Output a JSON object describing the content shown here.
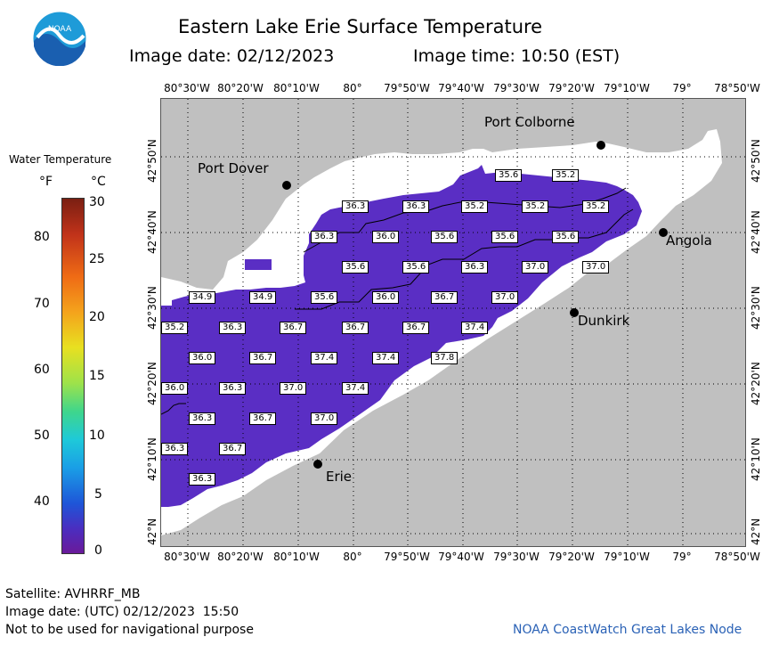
{
  "header": {
    "title": "Eastern Lake Erie Surface Temperature",
    "image_date": "Image date: 02/12/2023",
    "image_time": "Image time: 10:50 (EST)"
  },
  "logo": {
    "text": "NOAA"
  },
  "legend": {
    "title": "Water Temperature",
    "unit_f": "°F",
    "unit_c": "°C",
    "ticks_f": [
      "80",
      "70",
      "60",
      "50",
      "40"
    ],
    "ticks_c": [
      "30",
      "25",
      "20",
      "15",
      "10",
      "5",
      "0"
    ]
  },
  "axes": {
    "lon_labels": [
      "80°30'W",
      "80°20'W",
      "80°10'W",
      "80°",
      "79°50'W",
      "79°40'W",
      "79°30'W",
      "79°20'W",
      "79°10'W",
      "79°",
      "78°50'W"
    ],
    "lat_labels": [
      "42°50'N",
      "42°40'N",
      "42°30'N",
      "42°20'N",
      "42°10'N",
      "42°N"
    ]
  },
  "cities": {
    "port_colborne": "Port Colborne",
    "port_dover": "Port Dover",
    "angola": "Angola",
    "dunkirk": "Dunkirk",
    "erie": "Erie"
  },
  "temperature_labels": [
    "35.6",
    "35.2",
    "36.3",
    "36.3",
    "35.2",
    "35.2",
    "35.2",
    "36.3",
    "36.0",
    "35.6",
    "35.6",
    "35.6",
    "35.6",
    "35.6",
    "36.3",
    "37.0",
    "37.0",
    "34.9",
    "34.9",
    "35.6",
    "36.0",
    "36.7",
    "37.0",
    "35.2",
    "36.3",
    "36.7",
    "36.7",
    "36.7",
    "37.4",
    "36.0",
    "36.7",
    "37.4",
    "37.4",
    "37.8",
    "36.0",
    "36.3",
    "37.0",
    "37.4",
    "36.3",
    "36.7",
    "37.0",
    "36.3",
    "36.7",
    "36.3"
  ],
  "footer": {
    "satellite": "Satellite: AVHRRF_MB",
    "utc_date": "Image date: (UTC) 02/12/2023  15:50",
    "disclaimer": "Not to be used for navigational purpose",
    "credit": "NOAA CoastWatch Great Lakes Node"
  },
  "colors": {
    "land": "#c0c0c0",
    "ice": "#ffffff",
    "water_temp": "#5a2ec4"
  }
}
